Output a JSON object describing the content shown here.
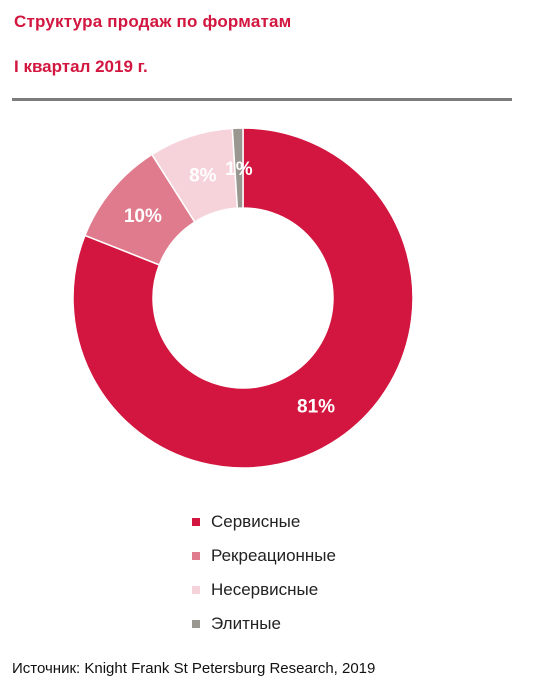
{
  "header": {
    "title": "Структура продаж по форматам",
    "subtitle": "I квартал 2019 г."
  },
  "colors": {
    "accent": "#d2163f",
    "rule": "#7c7c7c"
  },
  "chart_data": {
    "type": "pie",
    "donut": true,
    "legend_position": "bottom",
    "series": [
      {
        "name": "Сервисные",
        "value": 81,
        "label": "81%",
        "color": "#d2163f"
      },
      {
        "name": "Рекреационные",
        "value": 10,
        "label": "10%",
        "color": "#e07b8d"
      },
      {
        "name": "Несервисные",
        "value": 8,
        "label": "8%",
        "color": "#f6d3da"
      },
      {
        "name": "Элитные",
        "value": 1,
        "label": "1%",
        "color": "#9a9690"
      }
    ]
  },
  "legend": {
    "items": [
      {
        "label": "Сервисные",
        "color": "#d2163f"
      },
      {
        "label": "Рекреационные",
        "color": "#e07b8d"
      },
      {
        "label": "Несервисные",
        "color": "#f6d3da"
      },
      {
        "label": "Элитные",
        "color": "#9a9690"
      }
    ]
  },
  "footer": {
    "source": "Источник: Knight Frank St Petersburg Research, 2019"
  }
}
